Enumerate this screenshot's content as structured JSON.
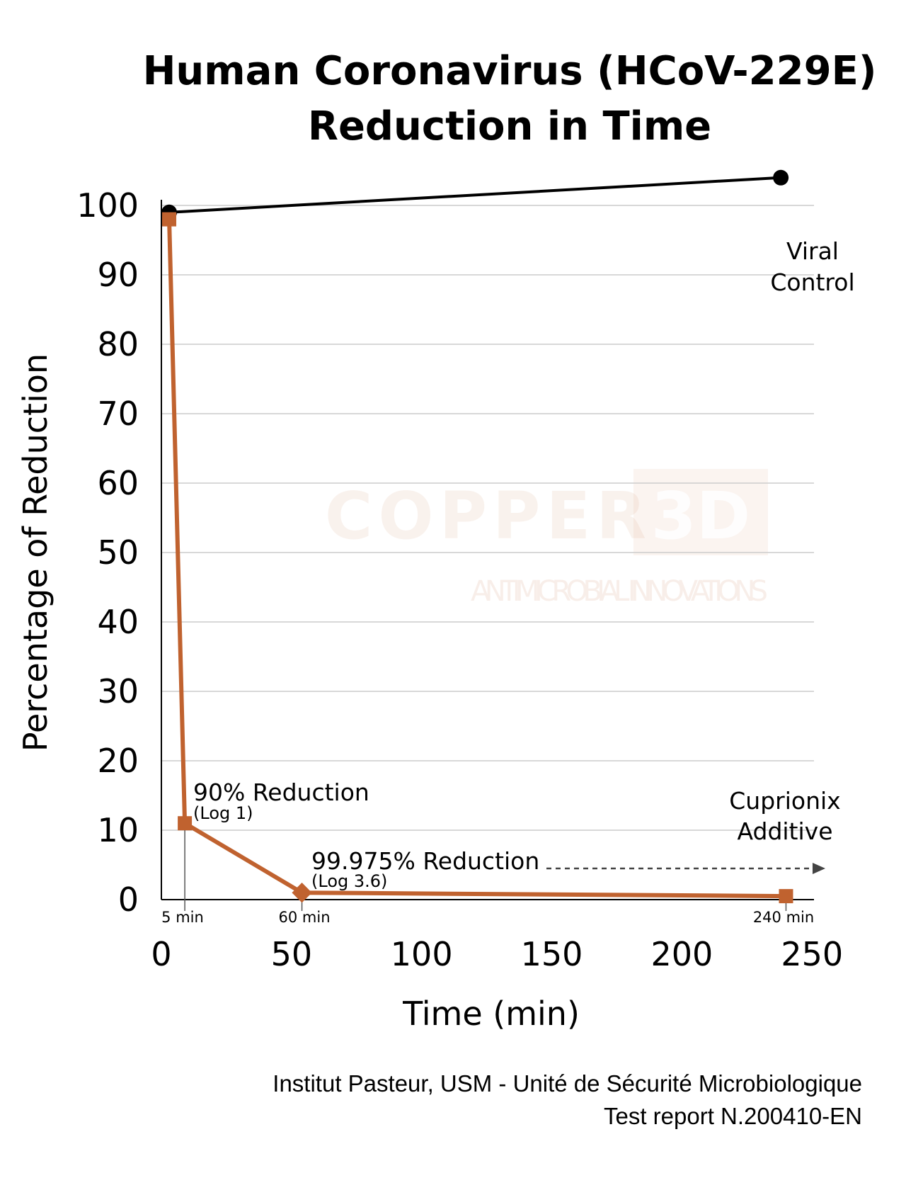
{
  "chart_data": {
    "type": "line",
    "title_lines": [
      "Human Coronavirus (HCoV-229E)",
      "Reduction in Time"
    ],
    "xlabel": "Time (min)",
    "ylabel": "Percentage  of  Reduction",
    "xlim": [
      0,
      250
    ],
    "ylim": [
      0,
      100
    ],
    "x_ticks": [
      0,
      50,
      100,
      150,
      200,
      250
    ],
    "y_ticks": [
      0,
      10,
      20,
      30,
      40,
      50,
      60,
      70,
      80,
      90,
      100
    ],
    "grid": "horizontal",
    "series": [
      {
        "name": "Viral Control",
        "name_lines": [
          "Viral",
          "Control"
        ],
        "color": "#000000",
        "marker": "circle",
        "points": [
          {
            "x": 3,
            "y": 99
          },
          {
            "x": 238,
            "y": 104
          }
        ]
      },
      {
        "name": "Cuprionix Additive",
        "name_lines": [
          "Cuprionix",
          "Additive"
        ],
        "color": "#c0622f",
        "marker": "square",
        "points": [
          {
            "x": 3,
            "y": 98
          },
          {
            "x": 9,
            "y": 11
          },
          {
            "x": 54,
            "y": 1
          },
          {
            "x": 240,
            "y": 0.5
          }
        ]
      }
    ],
    "annotations": [
      {
        "text": "90% Reduction",
        "sub": "(Log 1)"
      },
      {
        "text": "99.975% Reduction",
        "sub": "(Log 3.6)"
      }
    ],
    "time_markers": [
      "5 min",
      "60 min",
      "240 min"
    ],
    "watermark": {
      "brand": "COPPER",
      "badge": "3D",
      "tagline": "ANTIMICROBIAL INNOVATIONS"
    }
  },
  "source": {
    "line1": "Institut Pasteur, USM - Unité de Sécurité Microbiologique",
    "line2": "Test report N.200410-EN"
  }
}
